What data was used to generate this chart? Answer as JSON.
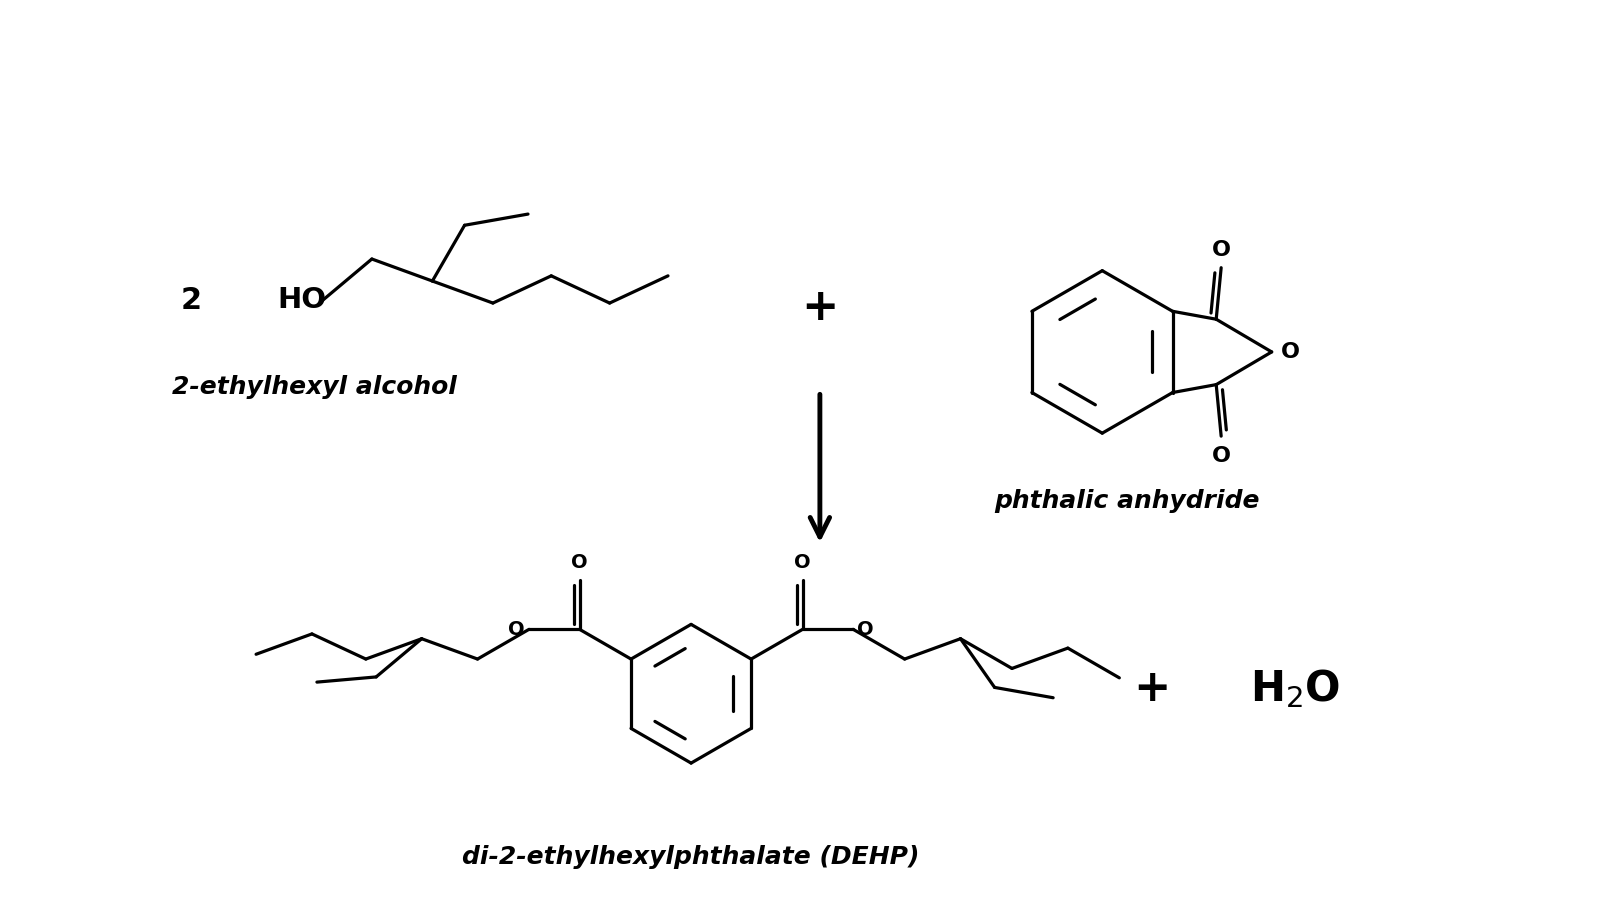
{
  "bg_color": "#ffffff",
  "line_color": "#000000",
  "line_width": 2.3,
  "font_family": "DejaVu Sans",
  "label_2ethylhexyl": "2-ethylhexyl alcohol",
  "label_phthalic": "phthalic anhydride",
  "label_dehp": "di-2-ethylhexylphthalate (DEHP)",
  "label_plus1": "+",
  "label_plus2": "+",
  "label_2": "2",
  "label_HO": "HO",
  "font_size_label": 18,
  "font_size_coeff": 22,
  "font_size_HO": 21,
  "font_size_atom": 16,
  "font_size_water": 30,
  "font_size_name": 20,
  "arrow_color": "#000000"
}
